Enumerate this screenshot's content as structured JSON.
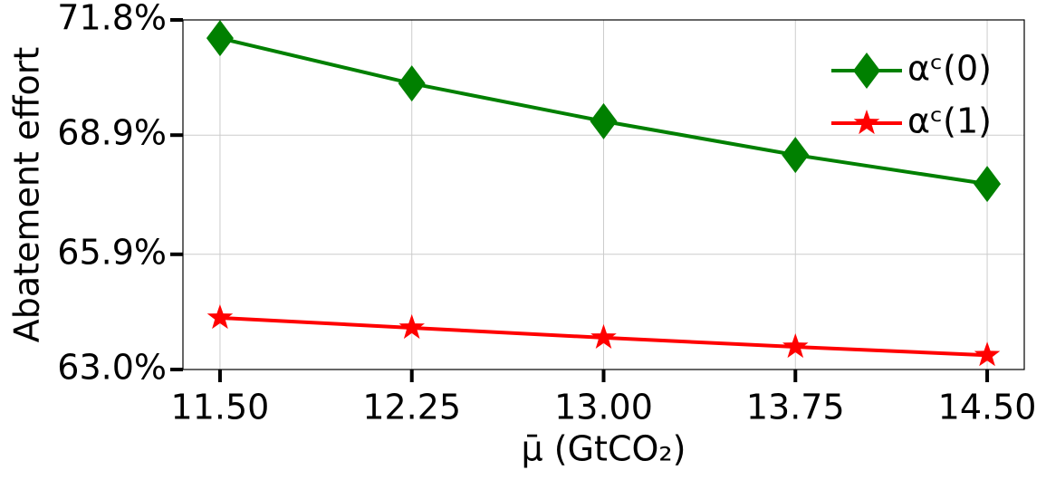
{
  "chart_data": {
    "type": "line",
    "x_label": "μ̄ (GtCO₂)",
    "y_label": "Abatement effort",
    "x": [
      11.5,
      12.25,
      13.0,
      13.75,
      14.5
    ],
    "series": [
      {
        "name": "αᶜ(0)",
        "color": "#008000",
        "marker": "diamond",
        "values": [
          71.34,
          70.2,
          69.25,
          68.4,
          67.67
        ]
      },
      {
        "name": "αᶜ(1)",
        "color": "#ff0000",
        "marker": "star",
        "values": [
          64.3,
          64.05,
          63.8,
          63.57,
          63.36
        ]
      }
    ],
    "xlim": [
      11.355,
      14.645
    ],
    "xticks": [
      {
        "value": 11.5,
        "label": "11.50"
      },
      {
        "value": 12.25,
        "label": "12.25"
      },
      {
        "value": 13.0,
        "label": "13.00"
      },
      {
        "value": 13.75,
        "label": "13.75"
      },
      {
        "value": 14.5,
        "label": "14.50"
      }
    ],
    "ylim": [
      63.0,
      71.8
    ],
    "yticks": [
      {
        "value": 63.0,
        "label": "63.0%"
      },
      {
        "value": 65.9,
        "label": "65.9%"
      },
      {
        "value": 68.9,
        "label": "68.9%"
      },
      {
        "value": 71.8,
        "label": "71.8%"
      }
    ],
    "grid": true,
    "legend": "upper right"
  }
}
